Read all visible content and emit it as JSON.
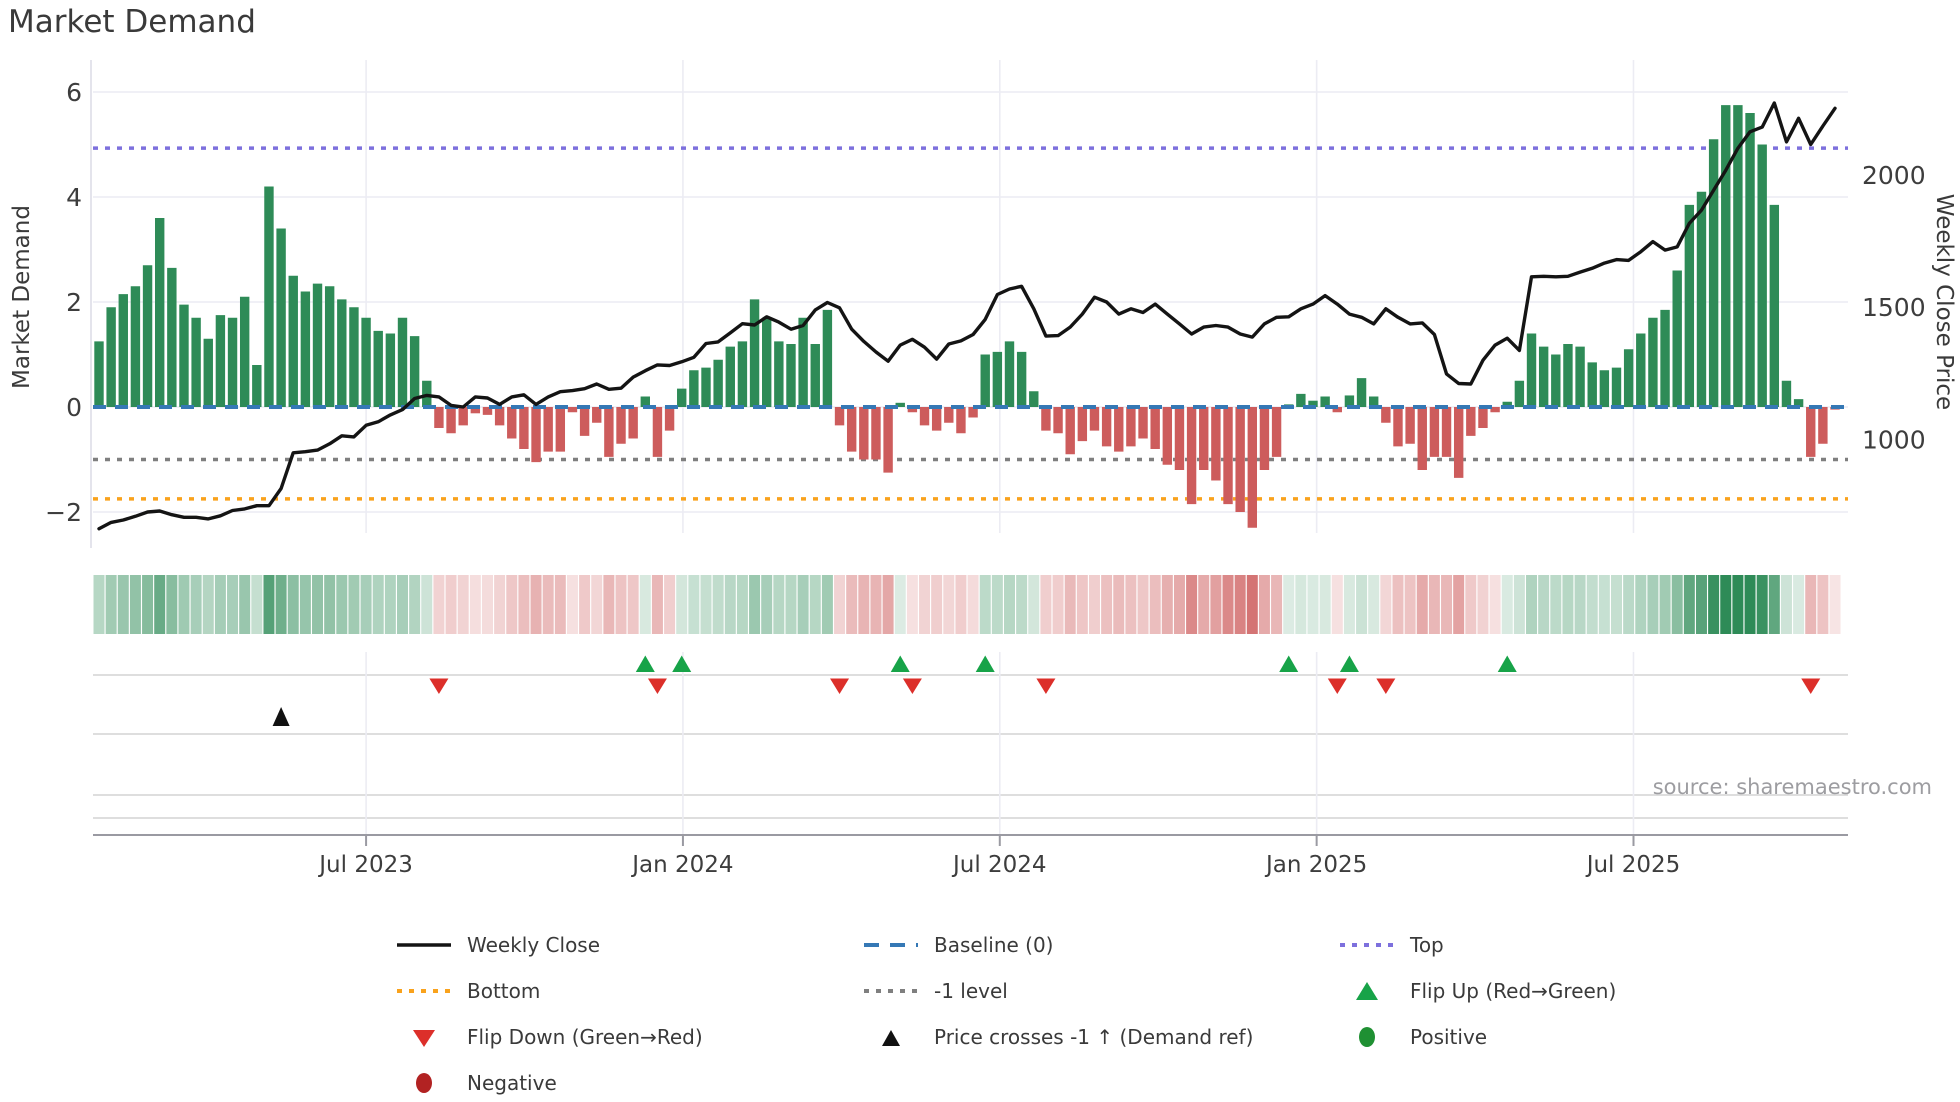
{
  "title": "Market Demand",
  "source_credit": "source: sharemaestro.com",
  "axes": {
    "left_label": "Market Demand",
    "right_label": "Weekly Close Price",
    "left_tick_labels": [
      "6",
      "4",
      "2",
      "0",
      "−2"
    ],
    "left_tick_values": [
      6,
      4,
      2,
      0,
      -2
    ],
    "right_tick_labels": [
      "2000",
      "1500",
      "1000"
    ],
    "right_tick_values": [
      2000,
      1500,
      1000
    ],
    "x_tick_labels": [
      "Jul 2023",
      "Jan 2024",
      "Jul 2024",
      "Jan 2025",
      "Jul 2025"
    ]
  },
  "colors": {
    "positive_bar": "#2e8b57",
    "negative_bar": "#cd5c5c",
    "price_line": "#141414",
    "baseline": "#3578b5",
    "top_line": "#7d70dd",
    "bottom_line": "#f9a21c",
    "minus1_line": "#7f7f7f",
    "flip_up_marker": "#17a348",
    "flip_down_marker": "#dc2f2a",
    "price_cross_marker": "#111111",
    "positive_dot": "#1f9033",
    "negative_dot": "#b22222",
    "gridline": "#ececf3",
    "panel_line": "#d4d4d4",
    "axis_line": "#9a9aa2",
    "tick_text": "#3d3d3d"
  },
  "legend": {
    "items": [
      {
        "label": "Weekly Close",
        "marker": "black-line"
      },
      {
        "label": "Baseline (0)",
        "marker": "blue-dashes"
      },
      {
        "label": "Top",
        "marker": "purple-dots"
      },
      {
        "label": "Bottom",
        "marker": "orange-dots"
      },
      {
        "label": "-1 level",
        "marker": "gray-dots"
      },
      {
        "label": "Flip Up (Red→Green)",
        "marker": "green-up-triangle"
      },
      {
        "label": "Flip Down (Green→Red)",
        "marker": "red-down-triangle"
      },
      {
        "label": "Price crosses -1 ↑ (Demand ref)",
        "marker": "black-up-triangle"
      },
      {
        "label": "Positive",
        "marker": "green-circle"
      },
      {
        "label": "Negative",
        "marker": "darkred-circle"
      }
    ]
  },
  "chart_data": {
    "type": "combo (weekly bars + line + heatmap strip + event-marker rows)",
    "title": "Market Demand",
    "x_axis": {
      "tick_labels": [
        "Jul 2023",
        "Jan 2024",
        "Jul 2024",
        "Jan 2025",
        "Jul 2025"
      ],
      "tick_week_positions": [
        22.0,
        48.1,
        74.2,
        100.3,
        126.4
      ],
      "weeks_total": 144
    },
    "demand_axis": {
      "label": "Market Demand",
      "ticks": [
        -2,
        0,
        2,
        4,
        6
      ],
      "range": [
        -2.6,
        6.6
      ]
    },
    "price_axis": {
      "label": "Weekly Close Price",
      "ticks": [
        1000,
        1500,
        2000
      ],
      "range": [
        650,
        2430
      ]
    },
    "reference_lines": [
      {
        "name": "Baseline (0)",
        "value": 0,
        "axis": "demand",
        "style": "dashed",
        "color": "#3578b5"
      },
      {
        "name": "-1 level",
        "value": -1,
        "axis": "demand",
        "style": "dotted",
        "color": "#7f7f7f"
      },
      {
        "name": "Bottom",
        "value": -1.75,
        "axis": "demand",
        "style": "dotted",
        "color": "#f9a21c"
      },
      {
        "name": "Top",
        "value": 4.93,
        "axis": "demand",
        "style": "dotted",
        "color": "#7d70dd"
      }
    ],
    "series": [
      {
        "name": "Market Demand (weekly bars, green = positive / red = negative)",
        "type": "bar",
        "axis": "demand",
        "values": [
          1.25,
          1.9,
          2.15,
          2.3,
          2.7,
          3.6,
          2.65,
          1.95,
          1.7,
          1.3,
          1.75,
          1.7,
          2.1,
          0.8,
          4.2,
          3.4,
          2.5,
          2.2,
          2.35,
          2.3,
          2.05,
          1.9,
          1.7,
          1.45,
          1.4,
          1.7,
          1.35,
          0.5,
          -0.4,
          -0.5,
          -0.35,
          -0.12,
          -0.15,
          -0.35,
          -0.6,
          -0.8,
          -1.05,
          -0.85,
          -0.85,
          -0.1,
          -0.55,
          -0.3,
          -0.95,
          -0.7,
          -0.6,
          0.2,
          -0.95,
          -0.45,
          0.35,
          0.7,
          0.75,
          0.9,
          1.15,
          1.25,
          2.05,
          1.7,
          1.25,
          1.2,
          1.7,
          1.2,
          1.85,
          -0.35,
          -0.85,
          -1.0,
          -1.0,
          -1.25,
          0.08,
          -0.1,
          -0.35,
          -0.45,
          -0.3,
          -0.5,
          -0.2,
          1.0,
          1.05,
          1.25,
          1.05,
          0.3,
          -0.45,
          -0.5,
          -0.9,
          -0.65,
          -0.45,
          -0.75,
          -0.85,
          -0.75,
          -0.6,
          -0.8,
          -1.1,
          -1.2,
          -1.85,
          -1.2,
          -1.4,
          -1.85,
          -2.0,
          -2.3,
          -1.2,
          -0.95,
          0.05,
          0.25,
          0.12,
          0.2,
          -0.1,
          0.22,
          0.55,
          0.2,
          -0.3,
          -0.75,
          -0.7,
          -1.2,
          -0.95,
          -0.95,
          -1.35,
          -0.55,
          -0.4,
          -0.1,
          0.1,
          0.5,
          1.4,
          1.15,
          1.0,
          1.2,
          1.15,
          0.85,
          0.7,
          0.75,
          1.1,
          1.4,
          1.7,
          1.85,
          2.6,
          3.85,
          4.1,
          5.1,
          5.75,
          5.75,
          5.6,
          5.0,
          3.85,
          0.5,
          0.15,
          -0.95,
          -0.7,
          -0.05
        ]
      },
      {
        "name": "Weekly Close",
        "type": "line",
        "axis": "price",
        "values": [
          663,
          687,
          696,
          710,
          726,
          730,
          716,
          706,
          706,
          700,
          712,
          732,
          738,
          750,
          750,
          815,
          950,
          954,
          960,
          984,
          1014,
          1010,
          1054,
          1067,
          1093,
          1113,
          1155,
          1167,
          1161,
          1129,
          1123,
          1161,
          1157,
          1133,
          1161,
          1169,
          1133,
          1161,
          1181,
          1185,
          1192,
          1210,
          1190,
          1194,
          1236,
          1260,
          1282,
          1280,
          1294,
          1311,
          1363,
          1369,
          1403,
          1438,
          1433,
          1464,
          1444,
          1417,
          1431,
          1490,
          1518,
          1498,
          1417,
          1371,
          1331,
          1296,
          1357,
          1379,
          1349,
          1304,
          1361,
          1373,
          1397,
          1454,
          1548,
          1569,
          1579,
          1494,
          1391,
          1393,
          1425,
          1474,
          1538,
          1520,
          1474,
          1494,
          1480,
          1512,
          1474,
          1437,
          1399,
          1425,
          1431,
          1425,
          1399,
          1387,
          1437,
          1462,
          1464,
          1494,
          1512,
          1544,
          1512,
          1474,
          1462,
          1437,
          1494,
          1462,
          1437,
          1441,
          1397,
          1248,
          1212,
          1210,
          1300,
          1357,
          1383,
          1337,
          1615,
          1617,
          1615,
          1617,
          1633,
          1647,
          1667,
          1680,
          1677,
          1710,
          1748,
          1716,
          1728,
          1817,
          1867,
          1942,
          2018,
          2101,
          2163,
          2181,
          2272,
          2125,
          2214,
          2115,
          2185,
          2252
        ]
      }
    ],
    "heatmap_strip": "one cell per week derived from demand values: green when positive, red when negative, color intensity proportional to |value|",
    "event_markers": {
      "flip_up_weeks": [
        45,
        48,
        66,
        73,
        98,
        103,
        116
      ],
      "flip_down_weeks": [
        28,
        46,
        61,
        67,
        78,
        102,
        106,
        141
      ],
      "price_cross_up_weeks": [
        15
      ]
    },
    "legend_position": "bottom, 3 columns",
    "grid": "light horizontal lines at demand ticks, light vertical lines at date ticks"
  }
}
